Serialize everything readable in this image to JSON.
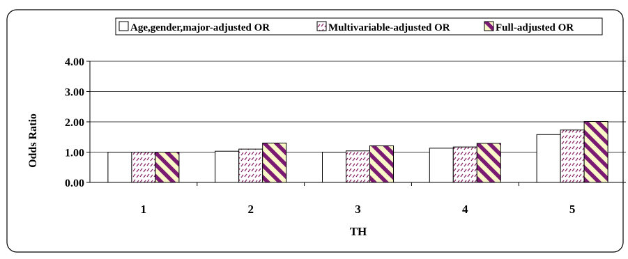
{
  "chart_data": {
    "type": "bar",
    "title": "",
    "xlabel": "TH",
    "ylabel": "Odds Ratio",
    "categories": [
      "1",
      "2",
      "3",
      "4",
      "5"
    ],
    "ylim": [
      0,
      4
    ],
    "yticks": [
      "0.00",
      "1.00",
      "2.00",
      "3.00",
      "4.00"
    ],
    "grid": true,
    "legend_position": "top",
    "series": [
      {
        "name": "Age,gender,major-adjusted OR",
        "pattern": "none",
        "color": "#ffffff",
        "values": [
          1.0,
          1.03,
          1.0,
          1.13,
          1.58
        ]
      },
      {
        "name": "Multivariable-adjusted OR",
        "pattern": "dots",
        "color": "#8b2a6b",
        "values": [
          1.0,
          1.1,
          1.04,
          1.17,
          1.73
        ]
      },
      {
        "name": "Full-adjusted OR",
        "pattern": "stripes",
        "color": "#7a1a72",
        "values": [
          1.0,
          1.3,
          1.21,
          1.29,
          2.01
        ]
      }
    ]
  }
}
